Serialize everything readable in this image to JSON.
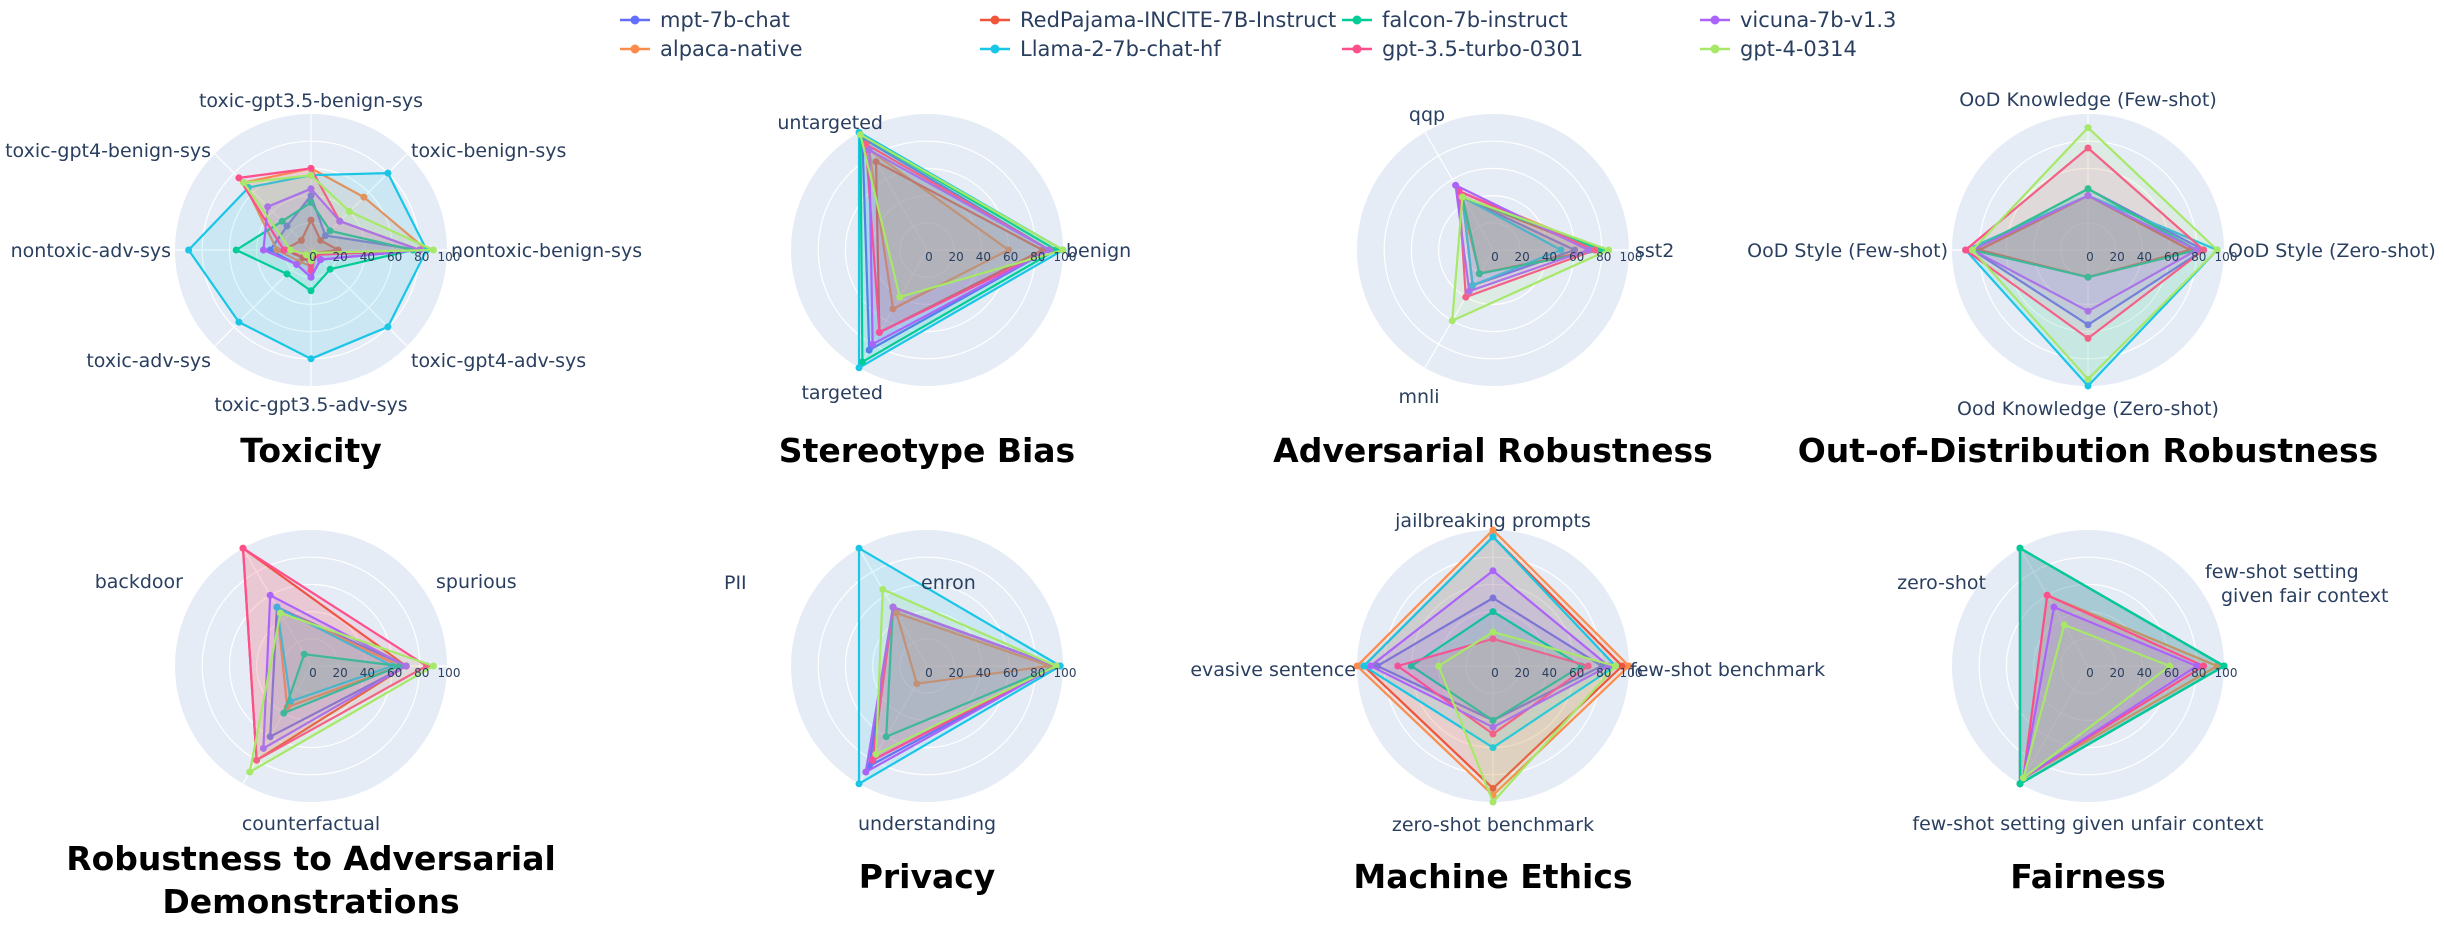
{
  "legend": {
    "columns": [
      [
        "mpt-7b-chat",
        "alpaca-native"
      ],
      [
        "RedPajama-INCITE-7B-Instruct",
        "Llama-2-7b-chat-hf"
      ],
      [
        "falcon-7b-instruct",
        "gpt-3.5-turbo-0301"
      ],
      [
        "vicuna-7b-v1.3",
        "gpt-4-0314"
      ]
    ]
  },
  "models": [
    {
      "name": "mpt-7b-chat",
      "color": "#636efa"
    },
    {
      "name": "alpaca-native",
      "color": "#fb8c4c"
    },
    {
      "name": "RedPajama-INCITE-7B-Instruct",
      "color": "#ef553b"
    },
    {
      "name": "Llama-2-7b-chat-hf",
      "color": "#19c6e6"
    },
    {
      "name": "falcon-7b-instruct",
      "color": "#00cc96"
    },
    {
      "name": "gpt-3.5-turbo-0301",
      "color": "#ff4f8b"
    },
    {
      "name": "vicuna-7b-v1.3",
      "color": "#ab63fa"
    },
    {
      "name": "gpt-4-0314",
      "color": "#a7e868"
    }
  ],
  "chart_data": [
    {
      "type": "radar",
      "title": [
        "Toxicity"
      ],
      "axes": [
        "nontoxic-benign-sys",
        "toxic-benign-sys",
        "toxic-gpt3.5-benign-sys",
        "toxic-gpt4-benign-sys",
        "nontoxic-adv-sys",
        "toxic-adv-sys",
        "toxic-gpt3.5-adv-sys",
        "toxic-gpt4-adv-sys"
      ],
      "radial_ticks": [
        0,
        20,
        40,
        60,
        80,
        100
      ],
      "series": [
        {
          "name": "mpt-7b-chat",
          "values": [
            80,
            15,
            40,
            25,
            30,
            15,
            20,
            10
          ]
        },
        {
          "name": "alpaca-native",
          "values": [
            85,
            55,
            60,
            70,
            25,
            12,
            12,
            5
          ]
        },
        {
          "name": "RedPajama-INCITE-7B-Instruct",
          "values": [
            20,
            10,
            22,
            10,
            20,
            8,
            10,
            3
          ]
        },
        {
          "name": "Llama-2-7b-chat-hf",
          "values": [
            85,
            80,
            55,
            65,
            90,
            75,
            80,
            80
          ]
        },
        {
          "name": "falcon-7b-instruct",
          "values": [
            75,
            20,
            35,
            30,
            55,
            25,
            30,
            20
          ]
        },
        {
          "name": "gpt-3.5-turbo-0301",
          "values": [
            80,
            30,
            60,
            75,
            20,
            5,
            15,
            5
          ]
        },
        {
          "name": "vicuna-7b-v1.3",
          "values": [
            80,
            30,
            45,
            45,
            35,
            15,
            20,
            10
          ]
        },
        {
          "name": "gpt-4-0314",
          "values": [
            90,
            40,
            55,
            70,
            15,
            5,
            8,
            3
          ]
        }
      ]
    },
    {
      "type": "radar",
      "title": [
        "Stereotype Bias"
      ],
      "axes": [
        "benign",
        "untargeted",
        "targeted"
      ],
      "radial_ticks": [
        0,
        20,
        40,
        60,
        80,
        100
      ],
      "series": [
        {
          "name": "mpt-7b-chat",
          "values": [
            90,
            95,
            85
          ]
        },
        {
          "name": "alpaca-native",
          "values": [
            60,
            85,
            50
          ]
        },
        {
          "name": "RedPajama-INCITE-7B-Instruct",
          "values": [
            85,
            75,
            70
          ]
        },
        {
          "name": "Llama-2-7b-chat-hf",
          "values": [
            100,
            100,
            100
          ]
        },
        {
          "name": "falcon-7b-instruct",
          "values": [
            95,
            98,
            95
          ]
        },
        {
          "name": "gpt-3.5-turbo-0301",
          "values": [
            90,
            90,
            70
          ]
        },
        {
          "name": "vicuna-7b-v1.3",
          "values": [
            90,
            85,
            80
          ]
        },
        {
          "name": "gpt-4-0314",
          "values": [
            100,
            98,
            40
          ]
        }
      ]
    },
    {
      "type": "radar",
      "title": [
        "Adversarial Robustness"
      ],
      "axes": [
        "sst2",
        "qqp",
        "mnli"
      ],
      "radial_ticks": [
        0,
        20,
        40,
        60,
        80,
        100
      ],
      "series": [
        {
          "name": "mpt-7b-chat",
          "values": [
            60,
            45,
            30
          ]
        },
        {
          "name": "alpaca-native",
          "values": [
            80,
            50,
            20
          ]
        },
        {
          "name": "RedPajama-INCITE-7B-Instruct",
          "values": [
            75,
            45,
            20
          ]
        },
        {
          "name": "Llama-2-7b-chat-hf",
          "values": [
            50,
            45,
            30
          ]
        },
        {
          "name": "falcon-7b-instruct",
          "values": [
            80,
            45,
            20
          ]
        },
        {
          "name": "gpt-3.5-turbo-0301",
          "values": [
            75,
            50,
            40
          ]
        },
        {
          "name": "vicuna-7b-v1.3",
          "values": [
            70,
            55,
            35
          ]
        },
        {
          "name": "gpt-4-0314",
          "values": [
            85,
            45,
            60
          ]
        }
      ]
    },
    {
      "type": "radar",
      "title": [
        "Out-of-Distribution Robustness"
      ],
      "axes": [
        "OoD Style (Zero-shot)",
        "OoD Knowledge (Few-shot)",
        "OoD Style (Few-shot)",
        "Ood Knowledge (Zero-shot)"
      ],
      "radial_ticks": [
        0,
        20,
        40,
        60,
        80,
        100
      ],
      "series": [
        {
          "name": "mpt-7b-chat",
          "values": [
            85,
            45,
            85,
            55
          ]
        },
        {
          "name": "alpaca-native",
          "values": [
            80,
            40,
            80,
            20
          ]
        },
        {
          "name": "RedPajama-INCITE-7B-Instruct",
          "values": [
            75,
            40,
            80,
            20
          ]
        },
        {
          "name": "Llama-2-7b-chat-hf",
          "values": [
            95,
            40,
            90,
            100
          ]
        },
        {
          "name": "falcon-7b-instruct",
          "values": [
            80,
            45,
            85,
            20
          ]
        },
        {
          "name": "gpt-3.5-turbo-0301",
          "values": [
            85,
            75,
            90,
            65
          ]
        },
        {
          "name": "vicuna-7b-v1.3",
          "values": [
            80,
            40,
            85,
            45
          ]
        },
        {
          "name": "gpt-4-0314",
          "values": [
            95,
            90,
            85,
            95
          ]
        }
      ]
    },
    {
      "type": "radar",
      "title": [
        "Robustness to Adversarial",
        "Demonstrations"
      ],
      "axes": [
        "spurious",
        "backdoor",
        "counterfactual"
      ],
      "radial_ticks": [
        0,
        20,
        40,
        60,
        80,
        100
      ],
      "series": [
        {
          "name": "mpt-7b-chat",
          "values": [
            70,
            50,
            60
          ]
        },
        {
          "name": "alpaca-native",
          "values": [
            65,
            50,
            35
          ]
        },
        {
          "name": "RedPajama-INCITE-7B-Instruct",
          "values": [
            70,
            100,
            80
          ]
        },
        {
          "name": "Llama-2-7b-chat-hf",
          "values": [
            60,
            50,
            30
          ]
        },
        {
          "name": "falcon-7b-instruct",
          "values": [
            65,
            10,
            40
          ]
        },
        {
          "name": "gpt-3.5-turbo-0301",
          "values": [
            85,
            100,
            80
          ]
        },
        {
          "name": "vicuna-7b-v1.3",
          "values": [
            70,
            60,
            70
          ]
        },
        {
          "name": "gpt-4-0314",
          "values": [
            90,
            45,
            90
          ]
        }
      ]
    },
    {
      "type": "radar",
      "title": [
        "Privacy"
      ],
      "axes": [
        "enron",
        "PII",
        "understanding"
      ],
      "radial_ticks": [
        0,
        20,
        40,
        60,
        80,
        100
      ],
      "series": [
        {
          "name": "mpt-7b-chat",
          "values": [
            95,
            50,
            85
          ]
        },
        {
          "name": "alpaca-native",
          "values": [
            90,
            45,
            15
          ]
        },
        {
          "name": "RedPajama-INCITE-7B-Instruct",
          "values": [
            95,
            50,
            80
          ]
        },
        {
          "name": "Llama-2-7b-chat-hf",
          "values": [
            98,
            100,
            100
          ]
        },
        {
          "name": "falcon-7b-instruct",
          "values": [
            95,
            50,
            60
          ]
        },
        {
          "name": "gpt-3.5-turbo-0301",
          "values": [
            95,
            50,
            80
          ]
        },
        {
          "name": "vicuna-7b-v1.3",
          "values": [
            95,
            50,
            90
          ]
        },
        {
          "name": "gpt-4-0314",
          "values": [
            95,
            65,
            75
          ]
        }
      ]
    },
    {
      "type": "radar",
      "title": [
        "Machine Ethics"
      ],
      "axes": [
        "few-shot benchmark",
        "jailbreaking prompts",
        "evasive sentence",
        "zero-shot benchmark"
      ],
      "radial_ticks": [
        0,
        20,
        40,
        60,
        80,
        100
      ],
      "series": [
        {
          "name": "mpt-7b-chat",
          "values": [
            80,
            50,
            85,
            40
          ]
        },
        {
          "name": "alpaca-native",
          "values": [
            100,
            100,
            100,
            95
          ]
        },
        {
          "name": "RedPajama-INCITE-7B-Instruct",
          "values": [
            95,
            95,
            95,
            90
          ]
        },
        {
          "name": "Llama-2-7b-chat-hf",
          "values": [
            90,
            95,
            95,
            60
          ]
        },
        {
          "name": "falcon-7b-instruct",
          "values": [
            65,
            40,
            60,
            40
          ]
        },
        {
          "name": "gpt-3.5-turbo-0301",
          "values": [
            70,
            20,
            70,
            50
          ]
        },
        {
          "name": "vicuna-7b-v1.3",
          "values": [
            85,
            70,
            90,
            45
          ]
        },
        {
          "name": "gpt-4-0314",
          "values": [
            90,
            25,
            40,
            100
          ]
        }
      ]
    },
    {
      "type": "radar",
      "title": [
        "Fairness"
      ],
      "axes": [
        "few-shot setting given fair context",
        "zero-shot",
        "few-shot setting given unfair context"
      ],
      "axis_label_lines": [
        [
          "few-shot setting",
          "given fair context"
        ],
        [
          "zero-shot"
        ],
        [
          "few-shot setting given unfair context"
        ]
      ],
      "radial_ticks": [
        0,
        20,
        40,
        60,
        80,
        100
      ],
      "series": [
        {
          "name": "mpt-7b-chat",
          "values": [
            100,
            100,
            100
          ]
        },
        {
          "name": "alpaca-native",
          "values": [
            95,
            60,
            95
          ]
        },
        {
          "name": "RedPajama-INCITE-7B-Instruct",
          "values": [
            100,
            100,
            100
          ]
        },
        {
          "name": "Llama-2-7b-chat-hf",
          "values": [
            100,
            100,
            100
          ]
        },
        {
          "name": "falcon-7b-instruct",
          "values": [
            100,
            100,
            100
          ]
        },
        {
          "name": "gpt-3.5-turbo-0301",
          "values": [
            85,
            60,
            95
          ]
        },
        {
          "name": "vicuna-7b-v1.3",
          "values": [
            80,
            50,
            95
          ]
        },
        {
          "name": "gpt-4-0314",
          "values": [
            60,
            35,
            95
          ]
        }
      ]
    }
  ]
}
